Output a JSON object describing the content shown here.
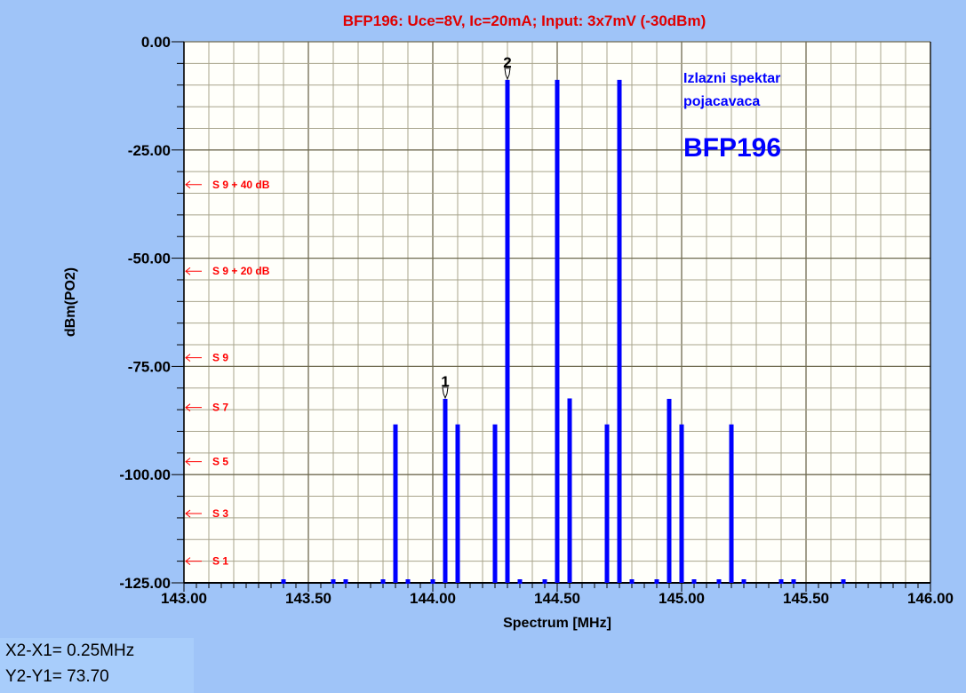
{
  "chart_data": {
    "type": "bar",
    "title": "BFP196: Uce=8V, Ic=20mA; Input: 3x7mV (-30dBm)",
    "xlabel": "Spectrum [MHz]",
    "ylabel": "dBm(PO2)",
    "xlim": [
      143.0,
      146.0
    ],
    "ylim": [
      -125.0,
      0.0
    ],
    "x_ticks": [
      "143.00",
      "143.50",
      "144.00",
      "144.50",
      "145.00",
      "145.50",
      "146.00"
    ],
    "y_ticks": [
      "0.00",
      "-25.00",
      "-50.00",
      "-75.00",
      "-100.00",
      "-125.00"
    ],
    "grid": true,
    "series": [
      {
        "x": [
          143.85,
          144.05,
          144.1,
          144.25,
          144.3,
          144.5,
          144.55,
          144.7,
          144.75,
          144.95,
          145.0,
          145.2
        ],
        "values": [
          -88.4,
          -82.5,
          -88.4,
          -88.4,
          -8.8,
          -8.8,
          -82.4,
          -88.4,
          -8.8,
          -82.5,
          -88.4,
          -88.4
        ],
        "color": "#0000ff"
      }
    ],
    "noise_floor_points": {
      "x": [
        143.4,
        143.6,
        143.65,
        143.8,
        143.9,
        144.0,
        144.35,
        144.45,
        144.8,
        144.9,
        145.05,
        145.15,
        145.25,
        145.4,
        145.45,
        145.65
      ],
      "value": -125.0
    },
    "markers": [
      {
        "label": "1",
        "x": 144.05,
        "y": -82.5
      },
      {
        "label": "2",
        "x": 144.3,
        "y": -8.8
      }
    ],
    "s_meter_annotations": [
      {
        "label": "S 9 + 40 dB",
        "y": -33.0
      },
      {
        "label": "S 9 + 20 dB",
        "y": -53.0
      },
      {
        "label": "S 9",
        "y": -73.0
      },
      {
        "label": "S 7",
        "y": -84.5
      },
      {
        "label": "S 5",
        "y": -97.0
      },
      {
        "label": "S 3",
        "y": -109.0
      },
      {
        "label": "S 1",
        "y": -120.0
      }
    ],
    "annotation_text": {
      "line1": "Izlazni spektar",
      "line2": "pojacavaca",
      "device": "BFP196"
    },
    "colors": {
      "title": "#e00000",
      "bars": "#0000ff",
      "annotation": "#0000ff",
      "s_meter": "#ff0000",
      "background": "#9fc4f8"
    }
  },
  "readout": {
    "dx": "X2-X1= 0.25MHz",
    "dy": "Y2-Y1= 73.70"
  }
}
